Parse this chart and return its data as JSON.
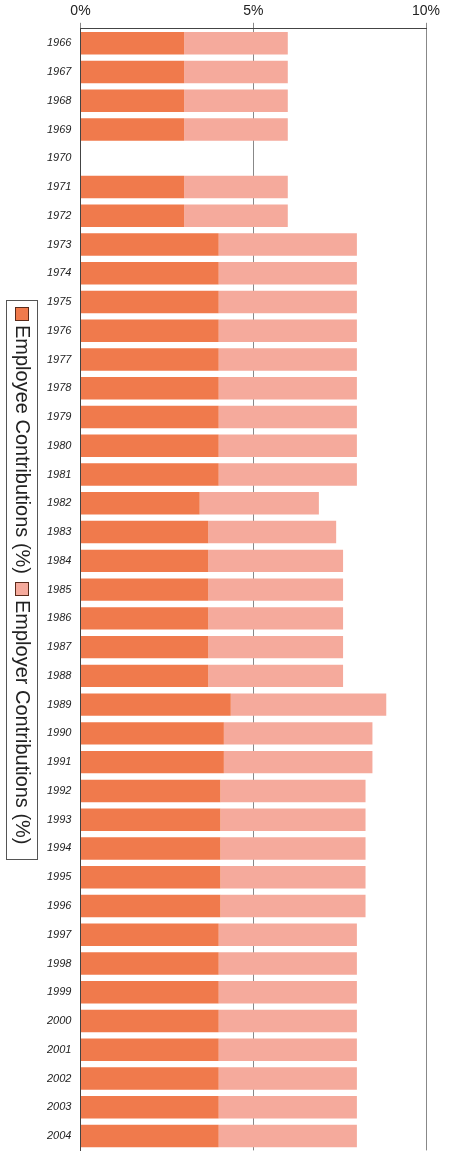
{
  "chart_data": {
    "type": "bar",
    "orientation": "horizontal",
    "stacked": true,
    "categories": [
      "1966",
      "1967",
      "1968",
      "1969",
      "1970",
      "1971",
      "1972",
      "1973",
      "1974",
      "1975",
      "1976",
      "1977",
      "1978",
      "1979",
      "1980",
      "1981",
      "1982",
      "1983",
      "1984",
      "1985",
      "1986",
      "1987",
      "1988",
      "1989",
      "1990",
      "1991",
      "1992",
      "1993",
      "1994",
      "1995",
      "1996",
      "1997",
      "1998",
      "1999",
      "2000",
      "2001",
      "2002",
      "2003",
      "2004"
    ],
    "series": [
      {
        "name": "Employee Contributions (%)",
        "color": "#f07a4c",
        "values": [
          3,
          3,
          3,
          3,
          null,
          3,
          3,
          4,
          4,
          4,
          4,
          4,
          4,
          4,
          4,
          4,
          3.45,
          3.7,
          3.7,
          3.7,
          3.7,
          3.7,
          3.7,
          4.35,
          4.15,
          4.15,
          4.05,
          4.05,
          4.05,
          4.05,
          4.05,
          4,
          4,
          4,
          4,
          4,
          4,
          4,
          4
        ]
      },
      {
        "name": "Employer Contributions (%)",
        "color": "#f5aa9c",
        "values": [
          3,
          3,
          3,
          3,
          null,
          3,
          3,
          4,
          4,
          4,
          4,
          4,
          4,
          4,
          4,
          4,
          3.45,
          3.7,
          3.9,
          3.9,
          3.9,
          3.9,
          3.9,
          4.5,
          4.3,
          4.3,
          4.2,
          4.2,
          4.2,
          4.2,
          4.2,
          4,
          4,
          4,
          4,
          4,
          4,
          4,
          4
        ]
      }
    ],
    "xlim": [
      0,
      10
    ],
    "xticks": [
      {
        "value": 0,
        "label": "0%"
      },
      {
        "value": 5,
        "label": "5%"
      },
      {
        "value": 10,
        "label": "10%"
      }
    ],
    "grid": "x",
    "legend": "left"
  }
}
